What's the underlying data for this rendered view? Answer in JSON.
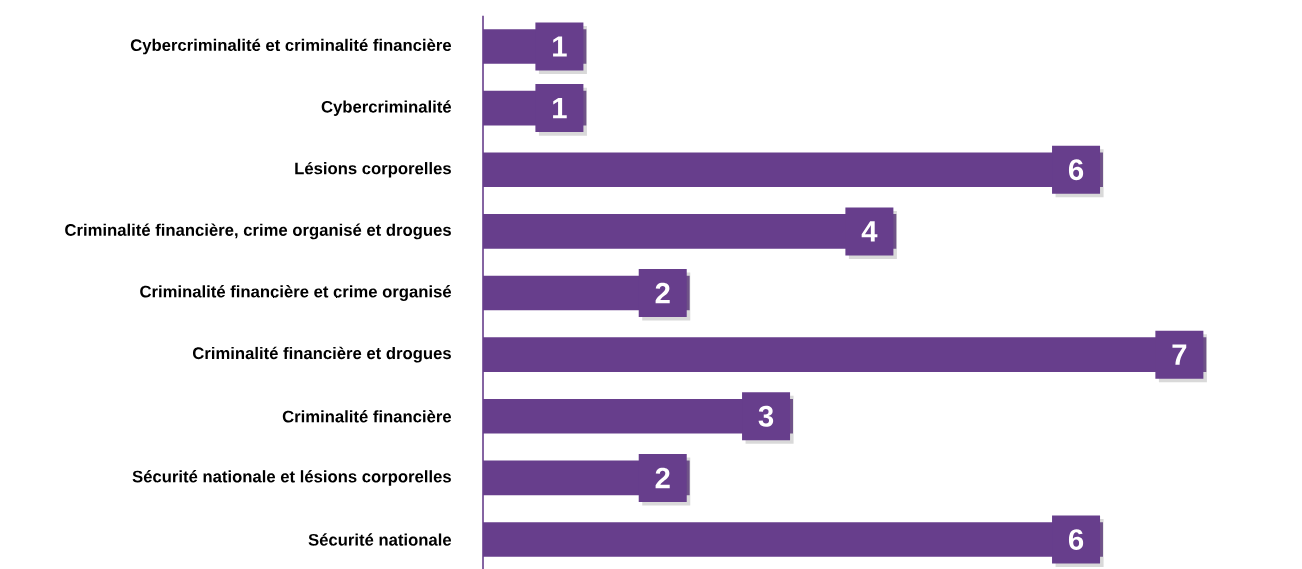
{
  "chart_data": {
    "type": "bar",
    "orientation": "horizontal",
    "categories": [
      "Cybercriminalité et criminalité financière",
      "Cybercriminalité",
      "Lésions corporelles",
      "Criminalité financière, crime organisé et drogues",
      "Criminalité financière et crime organisé",
      "Criminalité financière et drogues",
      "Criminalité financière",
      "Sécurité nationale et lésions corporelles",
      "Sécurité nationale"
    ],
    "values": [
      1,
      1,
      6,
      4,
      2,
      7,
      3,
      2,
      6
    ],
    "color": "#673e8c",
    "data_labels": true,
    "tick_labels": "y"
  }
}
